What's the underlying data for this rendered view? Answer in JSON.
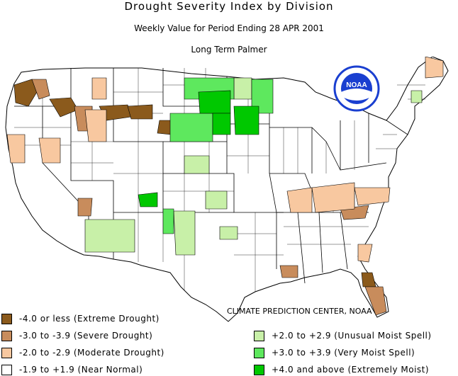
{
  "title": "Drought Severity Index by Division",
  "subtitle": "Weekly Value for Period Ending 28 APR 2001",
  "index_name": "Long Term Palmer",
  "credit": "CLIMATE PREDICTION CENTER, NOAA",
  "logo_text": "NOAA",
  "colors": {
    "extreme_drought": "#8B5A1C",
    "severe_drought": "#C88C5C",
    "moderate_drought": "#F8C8A0",
    "near_normal": "#FFFFFF",
    "unusual_moist": "#C8F0A8",
    "very_moist": "#5EE85E",
    "extremely_moist": "#00C800",
    "boundary": "#000000",
    "logo_blue": "#1a3fd0"
  },
  "legend_left": [
    {
      "label": "-4.0 or less (Extreme Drought)",
      "color": "#8B5A1C"
    },
    {
      "label": "-3.0 to -3.9 (Severe Drought)",
      "color": "#C88C5C"
    },
    {
      "label": "-2.0 to -2.9 (Moderate Drought)",
      "color": "#F8C8A0"
    },
    {
      "label": "-1.9 to +1.9 (Near Normal)",
      "color": "#FFFFFF"
    }
  ],
  "legend_right": [
    {
      "label": "+2.0 to +2.9 (Unusual Moist Spell)",
      "color": "#C8F0A8"
    },
    {
      "label": "+3.0 to +3.9 (Very Moist Spell)",
      "color": "#5EE85E"
    },
    {
      "label": "+4.0 and above (Extremely Moist)",
      "color": "#00C800"
    }
  ]
}
